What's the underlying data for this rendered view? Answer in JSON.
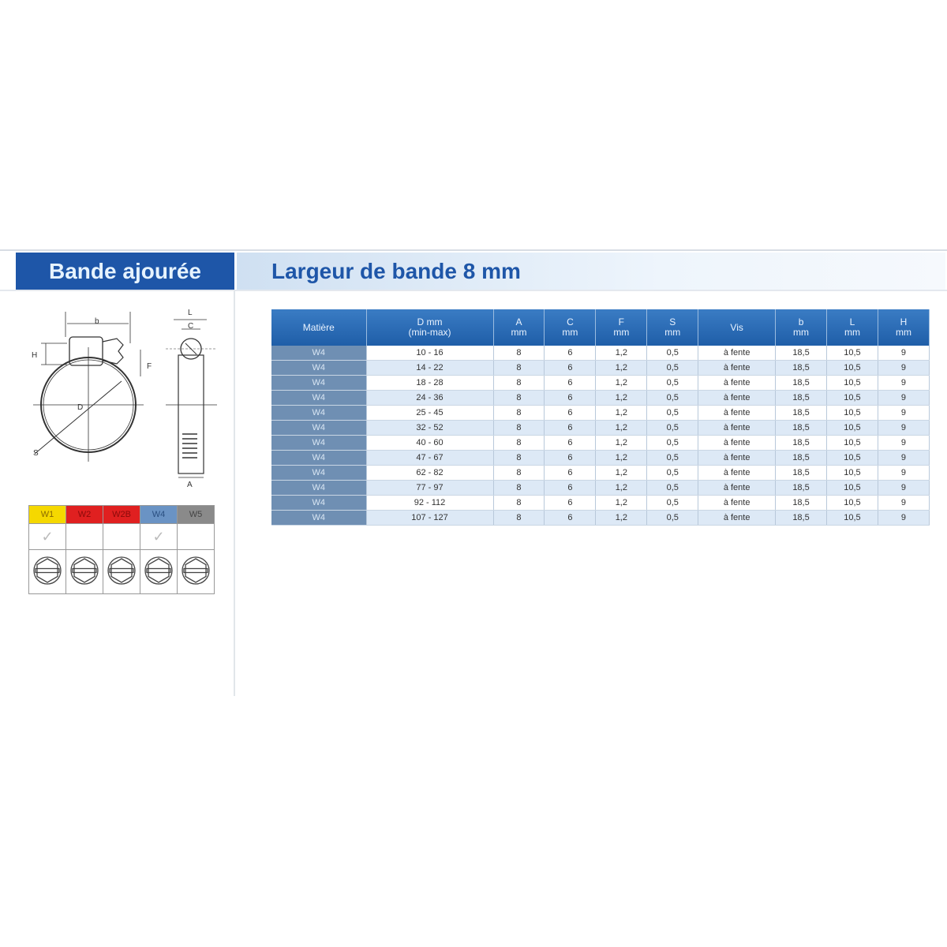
{
  "header": {
    "left_title": "Bande ajourée",
    "right_title": "Largeur de bande 8 mm"
  },
  "diagram_labels": {
    "b": "b",
    "H": "H",
    "F": "F",
    "D": "D",
    "S": "S",
    "L": "L",
    "C": "C",
    "A": "A"
  },
  "materials": [
    {
      "label": "W1",
      "color": "#f5d800",
      "text_color": "#8a6a00",
      "checked": true
    },
    {
      "label": "W2",
      "color": "#e02020",
      "text_color": "#8a0a0a",
      "checked": false
    },
    {
      "label": "W2B",
      "color": "#e02020",
      "text_color": "#8a0a0a",
      "checked": false
    },
    {
      "label": "W4",
      "color": "#6a93c4",
      "text_color": "#2a4f80",
      "checked": true
    },
    {
      "label": "W5",
      "color": "#8a8a8a",
      "text_color": "#444444",
      "checked": false
    }
  ],
  "check_glyph": "✓",
  "table": {
    "headers": [
      [
        "Matière",
        ""
      ],
      [
        "D mm",
        "(min-max)"
      ],
      [
        "A",
        "mm"
      ],
      [
        "C",
        "mm"
      ],
      [
        "F",
        "mm"
      ],
      [
        "S",
        "mm"
      ],
      [
        "Vis",
        ""
      ],
      [
        "b",
        "mm"
      ],
      [
        "L",
        "mm"
      ],
      [
        "H",
        "mm"
      ]
    ],
    "rows": [
      [
        "W4",
        "10 - 16",
        "8",
        "6",
        "1,2",
        "0,5",
        "à fente",
        "18,5",
        "10,5",
        "9"
      ],
      [
        "W4",
        "14 - 22",
        "8",
        "6",
        "1,2",
        "0,5",
        "à fente",
        "18,5",
        "10,5",
        "9"
      ],
      [
        "W4",
        "18 - 28",
        "8",
        "6",
        "1,2",
        "0,5",
        "à fente",
        "18,5",
        "10,5",
        "9"
      ],
      [
        "W4",
        "24 - 36",
        "8",
        "6",
        "1,2",
        "0,5",
        "à fente",
        "18,5",
        "10,5",
        "9"
      ],
      [
        "W4",
        "25 - 45",
        "8",
        "6",
        "1,2",
        "0,5",
        "à fente",
        "18,5",
        "10,5",
        "9"
      ],
      [
        "W4",
        "32 - 52",
        "8",
        "6",
        "1,2",
        "0,5",
        "à fente",
        "18,5",
        "10,5",
        "9"
      ],
      [
        "W4",
        "40 - 60",
        "8",
        "6",
        "1,2",
        "0,5",
        "à fente",
        "18,5",
        "10,5",
        "9"
      ],
      [
        "W4",
        "47 - 67",
        "8",
        "6",
        "1,2",
        "0,5",
        "à fente",
        "18,5",
        "10,5",
        "9"
      ],
      [
        "W4",
        "62 - 82",
        "8",
        "6",
        "1,2",
        "0,5",
        "à fente",
        "18,5",
        "10,5",
        "9"
      ],
      [
        "W4",
        "77 - 97",
        "8",
        "6",
        "1,2",
        "0,5",
        "à fente",
        "18,5",
        "10,5",
        "9"
      ],
      [
        "W4",
        "92 - 112",
        "8",
        "6",
        "1,2",
        "0,5",
        "à fente",
        "18,5",
        "10,5",
        "9"
      ],
      [
        "W4",
        "107 - 127",
        "8",
        "6",
        "1,2",
        "0,5",
        "à fente",
        "18,5",
        "10,5",
        "9"
      ]
    ]
  }
}
